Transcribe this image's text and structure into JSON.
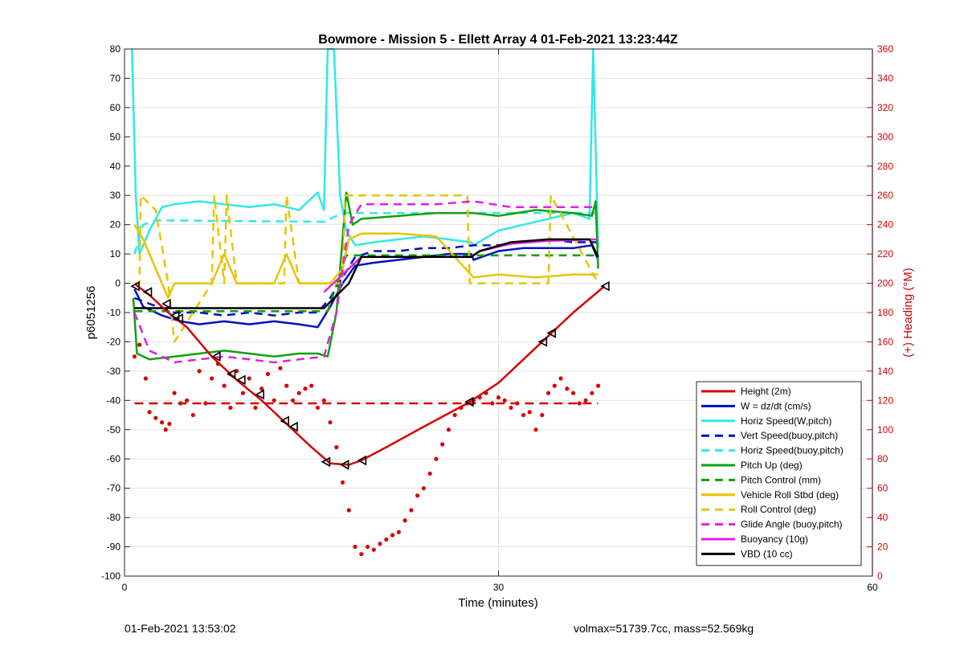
{
  "chart_data": {
    "type": "line",
    "title": "Bowmore - Mission 5 - Ellett Array 4 01-Feb-2021 13:23:44Z",
    "xlabel": "Time (minutes)",
    "ylabel": "p6051256",
    "y2label": "(+) Heading (°M)",
    "xlim": [
      0,
      60
    ],
    "ylim": [
      -100,
      80
    ],
    "y2lim": [
      0,
      360
    ],
    "xticks": [
      0,
      30,
      60
    ],
    "yticks": [
      -100,
      -90,
      -80,
      -70,
      -60,
      -50,
      -40,
      -30,
      -20,
      -10,
      0,
      10,
      20,
      30,
      40,
      50,
      60,
      70,
      80
    ],
    "y2ticks": [
      0,
      20,
      40,
      60,
      80,
      100,
      120,
      140,
      160,
      180,
      200,
      220,
      240,
      260,
      280,
      300,
      320,
      340,
      360
    ],
    "grid": true,
    "legend_position": "bottom-right",
    "series": [
      {
        "name": "Height (2m)",
        "color": "#d40000",
        "style": "solid",
        "width": 2.5,
        "x": [
          0.9,
          2,
          3.5,
          5,
          7,
          9,
          11,
          13,
          15,
          16.5,
          18,
          19,
          21,
          24,
          27.5,
          30,
          33,
          36,
          38.5
        ],
        "y": [
          -0.5,
          -4,
          -10,
          -15,
          -25,
          -33,
          -40,
          -48,
          -56,
          -61.5,
          -62,
          -60.5,
          -56,
          -49,
          -41,
          -34,
          -22,
          -10,
          -1
        ]
      },
      {
        "name": "W = dz/dt (cm/s)",
        "color": "#0010c0",
        "style": "solid",
        "width": 2.5,
        "x": [
          0.8,
          1.5,
          3,
          4.5,
          6,
          8,
          10,
          12,
          14,
          15.5,
          16.5,
          17.5,
          18.5,
          20,
          22,
          24,
          26,
          27.8,
          28,
          30,
          32,
          34,
          36,
          37.5,
          38
        ],
        "y": [
          -2,
          -8,
          -11,
          -13,
          -14,
          -13,
          -14,
          -13,
          -14,
          -15,
          -8,
          0,
          6,
          7,
          8,
          9,
          10,
          10,
          8,
          11,
          12,
          12,
          12,
          13,
          8
        ]
      },
      {
        "name": "Horiz Speed(W,pitch)",
        "color": "#30e8e8",
        "style": "solid",
        "width": 2.5,
        "x": [
          0.6,
          0.9,
          1.2,
          2,
          3,
          4,
          6,
          8,
          10,
          12,
          14,
          15.5,
          16,
          16.3,
          16.8,
          17.3,
          17.8,
          18.5,
          20,
          22,
          24,
          26,
          27.8,
          28,
          30,
          32,
          34,
          36,
          37.3,
          37.6,
          38
        ],
        "y": [
          80,
          30,
          10,
          18,
          26,
          27,
          28,
          27,
          26,
          27,
          25,
          31,
          25,
          80,
          80,
          30,
          18,
          13,
          14,
          15,
          16,
          15,
          14,
          13,
          18,
          20,
          22,
          24,
          22,
          80,
          12
        ]
      },
      {
        "name": "Vert Speed(buoy,pitch)",
        "color": "#0010c0",
        "style": "dashed",
        "width": 2.5,
        "x": [
          0.8,
          2,
          4,
          6,
          8,
          10,
          12,
          14,
          15.5,
          16.5,
          17.5,
          18.5,
          20,
          22,
          24,
          26,
          28,
          30,
          32,
          34,
          36,
          38
        ],
        "y": [
          -5,
          -7,
          -10,
          -10,
          -11,
          -10,
          -11,
          -10,
          -10,
          -5,
          2,
          9,
          11,
          11,
          12,
          12,
          13,
          13,
          14,
          15,
          14,
          14
        ]
      },
      {
        "name": "Horiz Speed(buoy,pitch)",
        "color": "#30e8e8",
        "style": "dashed",
        "width": 2.5,
        "x": [
          0.8,
          1.5,
          2.5,
          16,
          17.5,
          18.5,
          38
        ],
        "y": [
          10,
          20,
          21.5,
          21,
          24,
          24,
          24
        ]
      },
      {
        "name": "Pitch Up (deg)",
        "color": "#10a010",
        "style": "solid",
        "width": 2.5,
        "x": [
          0.7,
          1,
          2,
          4,
          6,
          8,
          10,
          12,
          14,
          15.5,
          16.3,
          17,
          17.8,
          18.3,
          19,
          22,
          25,
          28,
          30,
          33,
          36,
          37.5,
          37.8,
          38
        ],
        "y": [
          -5,
          -24,
          -26,
          -25,
          -24,
          -23,
          -24,
          -25,
          -24,
          -24,
          -25,
          -10,
          31,
          20,
          22,
          23,
          24,
          24,
          23,
          25,
          24,
          23,
          28,
          5
        ]
      },
      {
        "name": "Pitch Control (mm)",
        "color": "#10a010",
        "style": "dashed",
        "width": 2.5,
        "x": [
          0.8,
          16.3,
          17.8,
          38
        ],
        "y": [
          -9.5,
          -9.5,
          9.5,
          9.5
        ]
      },
      {
        "name": "Vehicle Roll Stbd (deg)",
        "color": "#e8c400",
        "style": "solid",
        "width": 2.5,
        "x": [
          0.8,
          1.5,
          2.5,
          3.5,
          4,
          5,
          7,
          8,
          9,
          10,
          12,
          13,
          14,
          15.5,
          16.5,
          17.5,
          18,
          19,
          22,
          25,
          28,
          30,
          33,
          36,
          38
        ],
        "y": [
          20,
          15,
          5,
          -5,
          0,
          0,
          0,
          10,
          0,
          0,
          0,
          10,
          0,
          0,
          0,
          5,
          15,
          17,
          17,
          16,
          2,
          3,
          2,
          3,
          3
        ]
      },
      {
        "name": "Roll Control (deg)",
        "color": "#e8c400",
        "style": "dashed",
        "width": 2.5,
        "x": [
          0.8,
          1.2,
          1.3,
          2.5,
          3.5,
          4,
          7,
          7.2,
          8,
          8.2,
          9,
          9.2,
          12.8,
          13,
          14,
          16.5,
          17.5,
          17.7,
          27.5,
          27.7,
          34,
          34.2,
          38
        ],
        "y": [
          0,
          0,
          30,
          25,
          0,
          -20,
          0,
          30,
          0,
          30,
          0,
          0,
          0,
          30,
          0,
          0,
          0,
          30,
          30,
          0,
          0,
          30,
          0
        ]
      },
      {
        "name": "Glide Angle (buoy,pitch)",
        "color": "#e020e0",
        "style": "dashed",
        "width": 2.5,
        "x": [
          0.8,
          2,
          4,
          6,
          8,
          10,
          12,
          14,
          16,
          17,
          18,
          19,
          22,
          25,
          28,
          31,
          34,
          36,
          38
        ],
        "y": [
          -10,
          -23,
          -27,
          -26,
          -25,
          -26,
          -27,
          -26,
          -25,
          -10,
          20,
          27,
          27,
          27,
          28,
          26,
          26,
          26,
          26
        ]
      },
      {
        "name": "Buoyancy (10g)",
        "color": "#e020e0",
        "style": "solid",
        "width": 2.5,
        "x": [
          16,
          18,
          19,
          27.8,
          28.5,
          31,
          34,
          38
        ],
        "y": [
          -3,
          5,
          9,
          9,
          11,
          13.5,
          14.5,
          15
        ]
      },
      {
        "name": "VBD (10 cc)",
        "color": "#000000",
        "style": "solid",
        "width": 2.5,
        "x": [
          0.8,
          16,
          18,
          19,
          27.8,
          28.5,
          31,
          34,
          37.3,
          38
        ],
        "y": [
          -8.5,
          -8.5,
          0,
          9,
          9,
          11,
          14,
          15,
          15,
          9
        ]
      }
    ],
    "heading_series": {
      "color": "#d40000",
      "mean": 118,
      "x": [
        0.8,
        1.2,
        1.7,
        2,
        2.5,
        3,
        3.3,
        3.6,
        4,
        4.5,
        5,
        5.5,
        6,
        6.5,
        7,
        7.5,
        8,
        8.5,
        9,
        9.5,
        10,
        10.5,
        11,
        11.5,
        12,
        12.5,
        13,
        13.5,
        14,
        14.5,
        15,
        15.5,
        16,
        16.5,
        17,
        17.5,
        18,
        18.5,
        19,
        19.5,
        20,
        20.5,
        21,
        21.5,
        22,
        22.5,
        23,
        23.5,
        24,
        24.5,
        25,
        25.5,
        26,
        26.5,
        27,
        27.5,
        28,
        28.5,
        29,
        29.5,
        30,
        30.5,
        31,
        31.5,
        32,
        32.5,
        33,
        33.5,
        34,
        34.5,
        35,
        35.5,
        36,
        36.5,
        37,
        37.5,
        38
      ],
      "y": [
        150,
        158,
        135,
        112,
        108,
        105,
        100,
        104,
        125,
        118,
        120,
        110,
        140,
        118,
        135,
        145,
        130,
        115,
        140,
        125,
        135,
        115,
        128,
        138,
        120,
        142,
        130,
        120,
        125,
        128,
        130,
        115,
        120,
        105,
        88,
        64,
        45,
        20,
        15,
        20,
        18,
        22,
        25,
        28,
        30,
        38,
        45,
        55,
        60,
        70,
        80,
        90,
        100,
        110,
        115,
        118,
        120,
        122,
        125,
        118,
        122,
        120,
        115,
        118,
        110,
        112,
        100,
        110,
        125,
        130,
        135,
        128,
        125,
        118,
        120,
        125,
        130
      ]
    },
    "triangle_markers": {
      "x": [
        0.9,
        1.9,
        3.4,
        4.1,
        4.4,
        7.4,
        8.6,
        9.4,
        10.9,
        12.9,
        13.6,
        16.2,
        17.7,
        19.1,
        27.7,
        33.6,
        34.3,
        38.6
      ],
      "y": [
        -1,
        -3,
        -7,
        -11,
        -12,
        -25,
        -31,
        -33,
        -38,
        -47,
        -49,
        -61,
        -62,
        -60.5,
        -40.5,
        -20,
        -17,
        -1
      ]
    }
  },
  "footer": {
    "left": "01-Feb-2021 13:53:02",
    "right": "volmax=51739.7cc, mass=52.569kg"
  }
}
